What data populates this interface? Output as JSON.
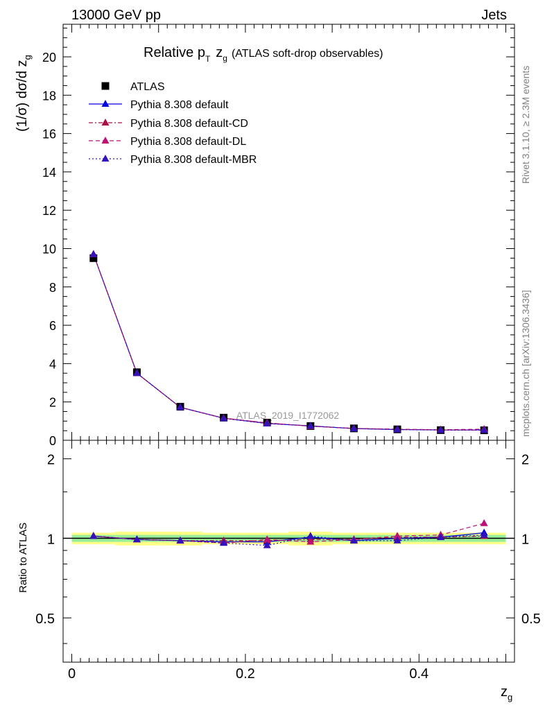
{
  "header": {
    "left": "13000 GeV pp",
    "right": "Jets"
  },
  "side_labels": {
    "rivet": "Rivet 3.1.10, ≥ 2.3M events",
    "mcplots": "mcplots.cern.ch [arXiv:1306.3436]"
  },
  "chart_data": {
    "type": "line",
    "title": "Relative p_T z_g (ATLAS soft-drop observables)",
    "title_main": "Relative p",
    "title_sub_T": "T",
    "title_z": "z",
    "title_sub_g": "g",
    "title_paren": "(ATLAS soft-drop observables)",
    "watermark": "ATLAS_2019_I1772062",
    "ylabel": "(1/σ) dσ/d z_g",
    "ylabel_main": "(1/σ) dσ/d z",
    "ylabel_sub": "g",
    "xlabel": "z_g",
    "xlabel_main": "z",
    "xlabel_sub": "g",
    "ratio_ylabel": "Ratio to ATLAS",
    "xlim": [
      -0.01,
      0.51
    ],
    "ylim": [
      0,
      21.7
    ],
    "ratio_ylim": [
      0.34,
      2.35
    ],
    "x_ticks": [
      "0",
      "0.2",
      "0.4"
    ],
    "y_ticks": [
      "0",
      "2",
      "4",
      "6",
      "8",
      "10",
      "12",
      "14",
      "16",
      "18",
      "20"
    ],
    "ratio_ticks": [
      "0.5",
      "1",
      "2"
    ],
    "x": [
      0.025,
      0.075,
      0.125,
      0.175,
      0.225,
      0.275,
      0.325,
      0.375,
      0.425,
      0.475
    ],
    "data": {
      "name": "ATLAS",
      "values": [
        9.5,
        3.55,
        1.75,
        1.18,
        0.92,
        0.74,
        0.62,
        0.57,
        0.53,
        0.52
      ]
    },
    "band_bins": [
      {
        "x0": 0.0,
        "x1": 0.05,
        "inner": 0.03,
        "outer": 0.05
      },
      {
        "x0": 0.05,
        "x1": 0.1,
        "inner": 0.03,
        "outer": 0.06
      },
      {
        "x0": 0.1,
        "x1": 0.15,
        "inner": 0.03,
        "outer": 0.06
      },
      {
        "x0": 0.15,
        "x1": 0.2,
        "inner": 0.03,
        "outer": 0.05
      },
      {
        "x0": 0.2,
        "x1": 0.25,
        "inner": 0.03,
        "outer": 0.05
      },
      {
        "x0": 0.25,
        "x1": 0.3,
        "inner": 0.03,
        "outer": 0.06
      },
      {
        "x0": 0.3,
        "x1": 0.35,
        "inner": 0.03,
        "outer": 0.05
      },
      {
        "x0": 0.35,
        "x1": 0.4,
        "inner": 0.03,
        "outer": 0.05
      },
      {
        "x0": 0.4,
        "x1": 0.45,
        "inner": 0.03,
        "outer": 0.05
      },
      {
        "x0": 0.45,
        "x1": 0.5,
        "inner": 0.03,
        "outer": 0.05
      }
    ],
    "series": [
      {
        "name": "Pythia 8.308 default",
        "color": "#0000dd",
        "dash": "",
        "values": [
          9.7,
          3.5,
          1.72,
          1.15,
          0.88,
          0.75,
          0.61,
          0.56,
          0.54,
          0.54
        ],
        "ratio": [
          1.02,
          0.99,
          0.98,
          0.97,
          0.97,
          1.01,
          0.98,
          1.0,
          1.01,
          1.05
        ]
      },
      {
        "name": "Pythia 8.308 default-CD",
        "color": "#aa1144",
        "dash": "6,3,2,3",
        "values": [
          9.7,
          3.5,
          1.72,
          1.16,
          0.9,
          0.74,
          0.62,
          0.57,
          0.54,
          0.53
        ],
        "ratio": [
          1.02,
          0.99,
          0.98,
          0.98,
          0.98,
          0.99,
          0.99,
          1.01,
          1.01,
          1.02
        ]
      },
      {
        "name": "Pythia 8.308 default-DL",
        "color": "#bb1177",
        "dash": "6,4",
        "values": [
          9.7,
          3.5,
          1.72,
          1.15,
          0.91,
          0.73,
          0.62,
          0.58,
          0.55,
          0.58
        ],
        "ratio": [
          1.02,
          0.99,
          0.98,
          0.96,
          0.99,
          0.97,
          0.99,
          1.02,
          1.03,
          1.14
        ]
      },
      {
        "name": "Pythia 8.308 default-MBR",
        "color": "#3311bb",
        "dash": "2,3",
        "values": [
          9.7,
          3.5,
          1.72,
          1.14,
          0.87,
          0.75,
          0.61,
          0.56,
          0.53,
          0.53
        ],
        "ratio": [
          1.02,
          0.99,
          0.98,
          0.96,
          0.94,
          1.02,
          0.98,
          0.98,
          1.01,
          1.03
        ]
      }
    ]
  }
}
